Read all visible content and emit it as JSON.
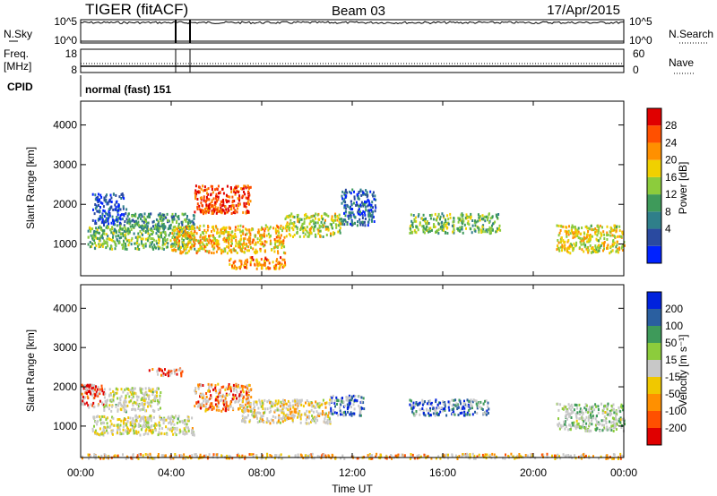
{
  "header": {
    "station": "TIGER (fitACF)",
    "beam": "Beam 03",
    "date": "17/Apr/2015"
  },
  "summary": {
    "nsky_label": "N.Sky",
    "nsky_ticks": [
      "10^5",
      "10^0"
    ],
    "nsearch_label": "N.Search",
    "nsearch_ticks": [
      "10^5",
      "10^0"
    ],
    "freq_label": "Freq.",
    "freq_unit": "[MHz]",
    "freq_ticks": [
      "18",
      "8"
    ],
    "nave_label": "Nave",
    "nave_ticks": [
      "60",
      "0"
    ],
    "cpid_label": "CPID",
    "cpid_value": "normal (fast) 151"
  },
  "x_axis": {
    "label": "Time UT",
    "ticks": [
      "00:00",
      "04:00",
      "08:00",
      "12:00",
      "16:00",
      "20:00",
      "00:00"
    ],
    "range_hours": [
      0,
      24
    ]
  },
  "colors": {
    "ground_scatter": "#c8c8c8"
  },
  "chart_data": [
    {
      "type": "heatmap",
      "parameter": "Power",
      "ylabel": "Slant Range [km]",
      "ylim": [
        200,
        4600
      ],
      "yticks": [
        "1000",
        "2000",
        "3000",
        "4000"
      ],
      "colorbar": {
        "label": "Power [dB]",
        "ticks": [
          "28",
          "24",
          "20",
          "16",
          "12",
          "8",
          "4"
        ],
        "colors": [
          "#0022ff",
          "#2a4aa0",
          "#2f7f8a",
          "#3e9a5a",
          "#8ccc3c",
          "#f0d000",
          "#ff9000",
          "#ff5000",
          "#e00000"
        ]
      },
      "echo_regions": [
        {
          "t": [
            0.5,
            2.0
          ],
          "range": [
            1500,
            2300
          ],
          "level": 0.15
        },
        {
          "t": [
            0.3,
            5.0
          ],
          "range": [
            900,
            1500
          ],
          "level": 0.45
        },
        {
          "t": [
            2.0,
            5.0
          ],
          "range": [
            1400,
            1800
          ],
          "level": 0.35
        },
        {
          "t": [
            5.0,
            7.5
          ],
          "range": [
            1800,
            2500
          ],
          "level": 0.85
        },
        {
          "t": [
            4.0,
            9.0
          ],
          "range": [
            800,
            1500
          ],
          "level": 0.65
        },
        {
          "t": [
            6.5,
            9.0
          ],
          "range": [
            400,
            700
          ],
          "level": 0.75
        },
        {
          "t": [
            9.0,
            11.5
          ],
          "range": [
            1200,
            1800
          ],
          "level": 0.55
        },
        {
          "t": [
            11.5,
            13.0
          ],
          "range": [
            1500,
            2400
          ],
          "level": 0.2
        },
        {
          "t": [
            14.5,
            18.5
          ],
          "range": [
            1300,
            1800
          ],
          "level": 0.45
        },
        {
          "t": [
            21.0,
            24.0
          ],
          "range": [
            800,
            1500
          ],
          "level": 0.6
        }
      ]
    },
    {
      "type": "heatmap",
      "parameter": "Velocity",
      "ylabel": "Slant Range [km]",
      "ylim": [
        200,
        4600
      ],
      "yticks": [
        "1000",
        "2000",
        "3000",
        "4000"
      ],
      "colorbar": {
        "label": "Velocity [m s⁻¹]",
        "ticks": [
          "200",
          "100",
          "50",
          "15",
          "-15",
          "-50",
          "-100",
          "-200"
        ],
        "colors": [
          "#e00000",
          "#ff5000",
          "#ff9000",
          "#f0c800",
          "#c8c8c8",
          "#8ccc3c",
          "#3e9a5a",
          "#2a5fa0",
          "#0022dd"
        ]
      },
      "echo_regions": [
        {
          "t": [
            0.0,
            1.0
          ],
          "range": [
            1500,
            2100
          ],
          "level": 0.1
        },
        {
          "t": [
            1.0,
            3.5
          ],
          "range": [
            1400,
            2000
          ],
          "level": 0.5
        },
        {
          "t": [
            0.5,
            5.0
          ],
          "range": [
            800,
            1300
          ],
          "level": 0.5
        },
        {
          "t": [
            3.0,
            4.5
          ],
          "range": [
            2300,
            2500
          ],
          "level": 0.1
        },
        {
          "t": [
            5.0,
            7.5
          ],
          "range": [
            1400,
            2100
          ],
          "level": 0.2
        },
        {
          "t": [
            7.0,
            11.0
          ],
          "range": [
            1100,
            1700
          ],
          "level": 0.4
        },
        {
          "t": [
            11.0,
            12.5
          ],
          "range": [
            1300,
            1800
          ],
          "level": 0.9
        },
        {
          "t": [
            14.5,
            18.0
          ],
          "range": [
            1300,
            1700
          ],
          "level": 0.85
        },
        {
          "t": [
            21.0,
            24.0
          ],
          "range": [
            900,
            1600
          ],
          "level": 0.6
        },
        {
          "t": [
            0.0,
            24.0
          ],
          "range": [
            200,
            320
          ],
          "level": 0.3
        }
      ]
    }
  ]
}
